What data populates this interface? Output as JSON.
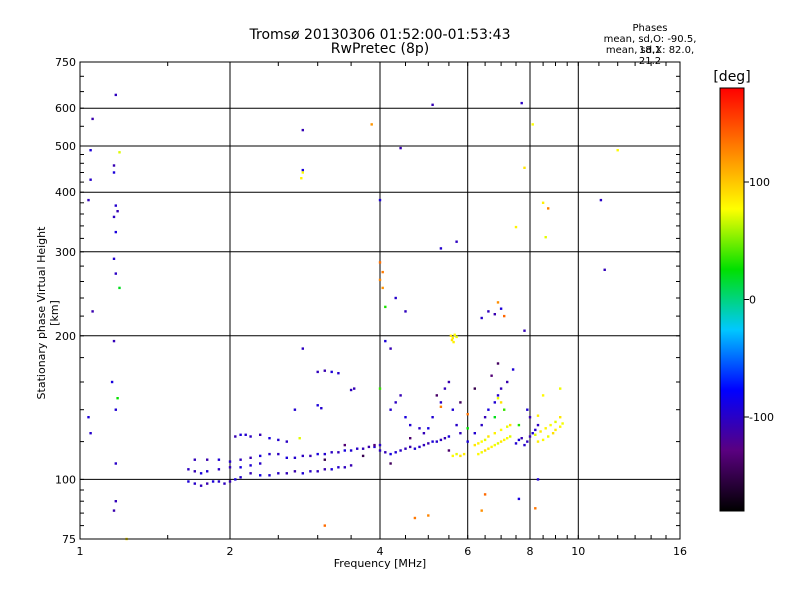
{
  "header": {
    "title": "Tromsø 20130306 01:52:00-01:53:43",
    "subtitle": "RwPretec (8p)"
  },
  "phases_box": {
    "heading": "Phases",
    "line1": "mean, sd,O: -90.5, 18.1",
    "line2": "mean, sd,X: 82.0, 21.2"
  },
  "chart_data": {
    "type": "scatter",
    "xlabel": "Frequency [MHz]",
    "ylabel": "Stationary phase Virtual Height [km]",
    "xscale": "log",
    "yscale": "log",
    "xlim": [
      1,
      16
    ],
    "ylim": [
      75,
      750
    ],
    "x_ticks": [
      1,
      2,
      4,
      6,
      8,
      10,
      16
    ],
    "x_tick_labels": [
      "1",
      "2",
      "4",
      "6",
      "8",
      "10",
      "16"
    ],
    "y_ticks": [
      75,
      100,
      200,
      300,
      400,
      500,
      600,
      750
    ],
    "y_tick_labels": [
      "75",
      "100",
      "200",
      "300",
      "400",
      "500",
      "600",
      "750"
    ],
    "grid": true,
    "colorbar": {
      "label": "[deg]",
      "range": [
        -180,
        180
      ],
      "ticks": [
        -100,
        0,
        100
      ],
      "tick_labels": [
        "-100",
        "0",
        "100"
      ],
      "colors": [
        "#000000",
        "#5a0080",
        "#0000ff",
        "#00c8ff",
        "#00e000",
        "#ffff00",
        "#ff8000",
        "#ff0000"
      ]
    },
    "series": [
      {
        "description": "O-mode (blue, ~-100 deg)",
        "phase": -100,
        "points": [
          [
            1.06,
            570
          ],
          [
            1.05,
            490
          ],
          [
            1.05,
            425
          ],
          [
            1.04,
            385
          ],
          [
            1.06,
            225
          ],
          [
            1.04,
            135
          ],
          [
            1.05,
            125
          ],
          [
            1.18,
            640
          ],
          [
            1.17,
            455
          ],
          [
            1.17,
            440
          ],
          [
            1.18,
            375
          ],
          [
            1.17,
            355
          ],
          [
            1.19,
            365
          ],
          [
            1.18,
            330
          ],
          [
            1.17,
            290
          ],
          [
            1.18,
            270
          ],
          [
            1.17,
            195
          ],
          [
            1.16,
            160
          ],
          [
            1.18,
            140
          ],
          [
            1.18,
            108
          ],
          [
            1.18,
            90
          ],
          [
            1.17,
            86
          ],
          [
            1.65,
            99
          ],
          [
            1.7,
            98
          ],
          [
            1.75,
            97
          ],
          [
            1.8,
            98
          ],
          [
            1.85,
            99
          ],
          [
            1.9,
            99
          ],
          [
            1.95,
            98
          ],
          [
            2.0,
            99
          ],
          [
            2.05,
            100
          ],
          [
            2.1,
            101
          ],
          [
            1.65,
            105
          ],
          [
            1.7,
            104
          ],
          [
            1.75,
            103
          ],
          [
            1.8,
            104
          ],
          [
            1.9,
            105
          ],
          [
            2.0,
            106
          ],
          [
            2.1,
            106
          ],
          [
            2.2,
            107
          ],
          [
            2.3,
            108
          ],
          [
            1.7,
            110
          ],
          [
            1.8,
            110
          ],
          [
            1.9,
            110
          ],
          [
            2.0,
            109
          ],
          [
            2.1,
            110
          ],
          [
            2.2,
            111
          ],
          [
            2.3,
            112
          ],
          [
            2.4,
            113
          ],
          [
            2.5,
            113
          ],
          [
            2.05,
            123
          ],
          [
            2.1,
            124
          ],
          [
            2.15,
            124
          ],
          [
            2.2,
            123
          ],
          [
            2.3,
            124
          ],
          [
            2.4,
            122
          ],
          [
            2.5,
            121
          ],
          [
            2.6,
            120
          ],
          [
            2.2,
            103
          ],
          [
            2.3,
            102
          ],
          [
            2.4,
            102
          ],
          [
            2.5,
            103
          ],
          [
            2.6,
            103
          ],
          [
            2.7,
            104
          ],
          [
            2.8,
            103
          ],
          [
            2.9,
            104
          ],
          [
            3.0,
            104
          ],
          [
            3.1,
            105
          ],
          [
            3.2,
            105
          ],
          [
            3.3,
            106
          ],
          [
            3.4,
            106
          ],
          [
            3.5,
            107
          ],
          [
            2.6,
            111
          ],
          [
            2.7,
            111
          ],
          [
            2.8,
            112
          ],
          [
            2.9,
            112
          ],
          [
            3.0,
            113
          ],
          [
            3.1,
            113
          ],
          [
            3.2,
            114
          ],
          [
            3.3,
            114
          ],
          [
            3.4,
            115
          ],
          [
            3.5,
            115
          ],
          [
            3.6,
            116
          ],
          [
            3.7,
            116
          ],
          [
            3.8,
            117
          ],
          [
            3.9,
            117
          ],
          [
            4.0,
            118
          ],
          [
            3.0,
            168
          ],
          [
            3.1,
            169
          ],
          [
            3.2,
            168
          ],
          [
            3.3,
            167
          ],
          [
            3.5,
            154
          ],
          [
            3.55,
            155
          ],
          [
            3.0,
            143
          ],
          [
            3.05,
            141
          ],
          [
            2.8,
            188
          ],
          [
            2.8,
            540
          ],
          [
            2.8,
            445
          ],
          [
            2.7,
            140
          ],
          [
            4.0,
            115
          ],
          [
            4.1,
            114
          ],
          [
            4.2,
            113
          ],
          [
            4.3,
            114
          ],
          [
            4.4,
            115
          ],
          [
            4.5,
            116
          ],
          [
            4.6,
            117
          ],
          [
            4.7,
            116
          ],
          [
            4.8,
            117
          ],
          [
            4.9,
            118
          ],
          [
            5.0,
            119
          ],
          [
            5.1,
            120
          ],
          [
            5.2,
            120
          ],
          [
            5.3,
            121
          ],
          [
            5.4,
            122
          ],
          [
            5.5,
            123
          ],
          [
            4.2,
            140
          ],
          [
            4.3,
            145
          ],
          [
            4.4,
            150
          ],
          [
            4.5,
            135
          ],
          [
            4.6,
            130
          ],
          [
            4.8,
            128
          ],
          [
            4.9,
            125
          ],
          [
            5.0,
            128
          ],
          [
            5.1,
            135
          ],
          [
            5.3,
            145
          ],
          [
            5.4,
            155
          ],
          [
            5.5,
            160
          ],
          [
            5.6,
            140
          ],
          [
            5.7,
            130
          ],
          [
            5.8,
            125
          ],
          [
            4.4,
            495
          ],
          [
            4.0,
            385
          ],
          [
            4.3,
            240
          ],
          [
            4.5,
            225
          ],
          [
            4.2,
            188
          ],
          [
            4.1,
            195
          ],
          [
            5.3,
            305
          ],
          [
            5.7,
            315
          ],
          [
            5.1,
            610
          ],
          [
            6.0,
            120
          ],
          [
            6.2,
            125
          ],
          [
            6.4,
            130
          ],
          [
            6.5,
            135
          ],
          [
            6.6,
            140
          ],
          [
            6.8,
            145
          ],
          [
            6.9,
            150
          ],
          [
            7.0,
            155
          ],
          [
            7.2,
            160
          ],
          [
            7.4,
            170
          ],
          [
            6.4,
            218
          ],
          [
            6.6,
            225
          ],
          [
            6.8,
            222
          ],
          [
            7.0,
            228
          ],
          [
            7.8,
            118
          ],
          [
            7.9,
            120
          ],
          [
            8.0,
            123
          ],
          [
            8.1,
            125
          ],
          [
            8.2,
            127
          ],
          [
            8.3,
            130
          ],
          [
            7.7,
            122
          ],
          [
            7.6,
            121
          ],
          [
            7.5,
            119
          ],
          [
            7.7,
            615
          ],
          [
            7.8,
            205
          ],
          [
            7.6,
            91
          ],
          [
            8.3,
            100
          ],
          [
            11.1,
            385
          ],
          [
            11.3,
            275
          ],
          [
            8.0,
            135
          ],
          [
            7.9,
            140
          ]
        ]
      },
      {
        "description": "X-mode (yellow-green, ~+80 deg)",
        "phase": 80,
        "points": [
          [
            1.2,
            485
          ],
          [
            1.24,
            75
          ],
          [
            2.78,
            428
          ],
          [
            2.8,
            440
          ],
          [
            2.76,
            122
          ],
          [
            5.55,
            200
          ],
          [
            5.6,
            198
          ],
          [
            5.65,
            201
          ],
          [
            5.7,
            199
          ],
          [
            5.58,
            196
          ],
          [
            5.62,
            194
          ],
          [
            5.6,
            112
          ],
          [
            5.7,
            113
          ],
          [
            5.8,
            112
          ],
          [
            5.9,
            113
          ],
          [
            6.3,
            113
          ],
          [
            6.4,
            114
          ],
          [
            6.5,
            115
          ],
          [
            6.6,
            116
          ],
          [
            6.7,
            117
          ],
          [
            6.8,
            118
          ],
          [
            6.9,
            119
          ],
          [
            7.0,
            120
          ],
          [
            7.1,
            121
          ],
          [
            7.2,
            122
          ],
          [
            7.3,
            123
          ],
          [
            6.2,
            118
          ],
          [
            6.3,
            119
          ],
          [
            6.4,
            120
          ],
          [
            6.5,
            121
          ],
          [
            6.6,
            123
          ],
          [
            6.8,
            125
          ],
          [
            7.0,
            127
          ],
          [
            7.2,
            129
          ],
          [
            7.3,
            130
          ],
          [
            8.3,
            120
          ],
          [
            8.5,
            121
          ],
          [
            8.7,
            123
          ],
          [
            8.9,
            125
          ],
          [
            9.0,
            127
          ],
          [
            9.2,
            129
          ],
          [
            9.3,
            131
          ],
          [
            8.2,
            124
          ],
          [
            8.4,
            126
          ],
          [
            8.6,
            128
          ],
          [
            8.8,
            130
          ],
          [
            9.0,
            132
          ],
          [
            9.2,
            135
          ],
          [
            7.5,
            338
          ],
          [
            8.1,
            555
          ],
          [
            8.6,
            322
          ],
          [
            7.8,
            450
          ],
          [
            8.5,
            380
          ],
          [
            12.0,
            490
          ],
          [
            6.9,
            148
          ],
          [
            7.0,
            145
          ],
          [
            8.3,
            136
          ],
          [
            8.5,
            150
          ],
          [
            9.2,
            155
          ]
        ]
      },
      {
        "description": "Green (~0 to +50 deg)",
        "phase": 30,
        "points": [
          [
            1.2,
            252
          ],
          [
            4.0,
            155
          ],
          [
            4.1,
            230
          ],
          [
            6.0,
            128
          ],
          [
            6.8,
            135
          ],
          [
            7.1,
            140
          ],
          [
            7.6,
            130
          ],
          [
            1.19,
            148
          ]
        ]
      },
      {
        "description": "Orange (~+130 deg)",
        "phase": 130,
        "points": [
          [
            3.85,
            555
          ],
          [
            4.0,
            285
          ],
          [
            4.05,
            272
          ],
          [
            4.0,
            262
          ],
          [
            4.05,
            252
          ],
          [
            3.1,
            80
          ],
          [
            4.7,
            83
          ],
          [
            5.0,
            84
          ],
          [
            6.4,
            86
          ],
          [
            6.5,
            93
          ],
          [
            8.2,
            87
          ],
          [
            8.7,
            370
          ],
          [
            6.9,
            235
          ],
          [
            7.1,
            220
          ],
          [
            6.0,
            137
          ],
          [
            5.3,
            142
          ]
        ]
      },
      {
        "description": "Purple (~-140 deg)",
        "phase": -140,
        "points": [
          [
            3.1,
            110
          ],
          [
            3.4,
            118
          ],
          [
            5.2,
            150
          ],
          [
            5.8,
            145
          ],
          [
            6.2,
            155
          ],
          [
            6.7,
            165
          ],
          [
            5.5,
            115
          ],
          [
            4.2,
            108
          ],
          [
            3.7,
            112
          ],
          [
            3.9,
            118
          ],
          [
            4.6,
            122
          ],
          [
            6.9,
            175
          ]
        ]
      }
    ]
  }
}
